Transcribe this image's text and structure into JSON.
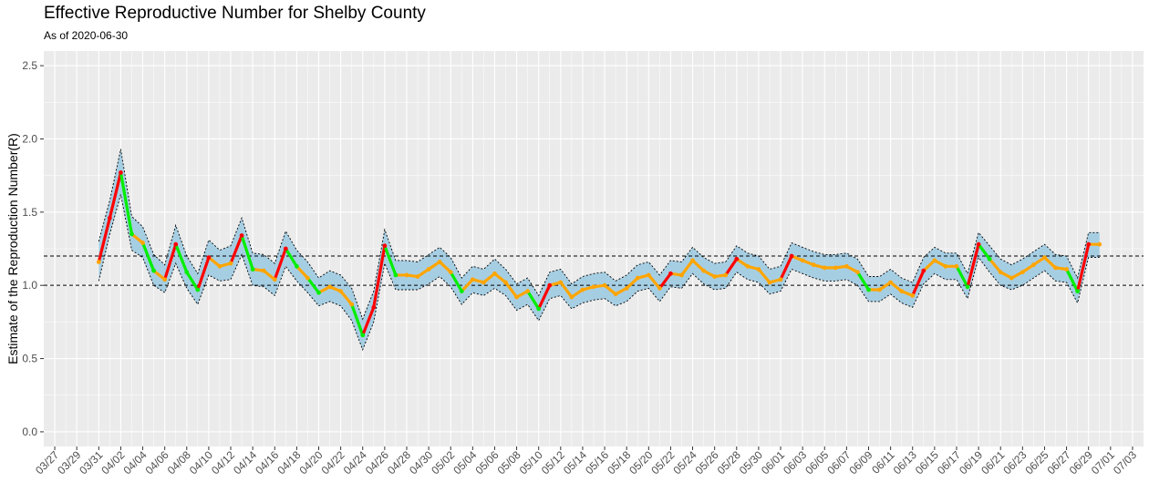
{
  "chart_data": {
    "type": "line",
    "title": "Effective Reproductive Number for Shelby County",
    "subtitle": "As of 2020-06-30",
    "xlabel": "",
    "ylabel": "Estimate of the Reproduction Number(R)",
    "ylim": [
      -0.1,
      2.6
    ],
    "yticks": [
      "0.0",
      "0.5",
      "1.0",
      "1.5",
      "2.0",
      "2.5"
    ],
    "ytick_values": [
      0,
      0.5,
      1.0,
      1.5,
      2.0,
      2.5
    ],
    "xlim": [
      "03/26",
      "07/04"
    ],
    "xtick_labels": [
      "03/27",
      "03/29",
      "03/31",
      "04/02",
      "04/04",
      "04/06",
      "04/08",
      "04/10",
      "04/12",
      "04/14",
      "04/16",
      "04/18",
      "04/20",
      "04/22",
      "04/24",
      "04/26",
      "04/28",
      "04/30",
      "05/02",
      "05/04",
      "05/06",
      "05/08",
      "05/10",
      "05/12",
      "05/14",
      "05/16",
      "05/18",
      "05/20",
      "05/22",
      "05/24",
      "05/26",
      "05/28",
      "05/30",
      "06/01",
      "06/03",
      "06/05",
      "06/07",
      "06/09",
      "06/11",
      "06/13",
      "06/15",
      "06/17",
      "06/19",
      "06/21",
      "06/23",
      "06/25",
      "06/27",
      "06/29",
      "07/01",
      "07/03"
    ],
    "reference_lines": [
      1.0,
      1.2
    ],
    "grid": true,
    "legend": "none",
    "colors": {
      "panel_bg": "#ebebeb",
      "grid": "#ffffff",
      "ribbon": "#a6cee3",
      "increasing": "#ff0000",
      "stable": "#ffa500",
      "decreasing": "#00ee00"
    },
    "series": [
      {
        "dates": [
          "03/31",
          "04/01",
          "04/02",
          "04/03",
          "04/04",
          "04/05",
          "04/06",
          "04/07",
          "04/08",
          "04/09",
          "04/10",
          "04/11",
          "04/12",
          "04/13",
          "04/14",
          "04/15",
          "04/16",
          "04/17",
          "04/18",
          "04/19",
          "04/20",
          "04/21",
          "04/22",
          "04/23",
          "04/24",
          "04/25",
          "04/26",
          "04/27",
          "04/28",
          "04/29",
          "04/30",
          "05/01",
          "05/02",
          "05/03",
          "05/04",
          "05/05",
          "05/06",
          "05/07",
          "05/08",
          "05/09",
          "05/10",
          "05/11",
          "05/12",
          "05/13",
          "05/14",
          "05/15",
          "05/16",
          "05/17",
          "05/18",
          "05/19",
          "05/20",
          "05/21",
          "05/22",
          "05/23",
          "05/24",
          "05/25",
          "05/26",
          "05/27",
          "05/28",
          "05/29",
          "05/30",
          "05/31",
          "06/01",
          "06/02",
          "06/03",
          "06/04",
          "06/05",
          "06/06",
          "06/07",
          "06/08",
          "06/09",
          "06/10",
          "06/11",
          "06/12",
          "06/13",
          "06/14",
          "06/15",
          "06/16",
          "06/17",
          "06/18",
          "06/19",
          "06/20",
          "06/21",
          "06/22",
          "06/23",
          "06/24",
          "06/25",
          "06/26",
          "06/27",
          "06/28",
          "06/29",
          "06/30"
        ],
        "r": [
          1.16,
          1.46,
          1.77,
          1.35,
          1.29,
          1.1,
          1.04,
          1.28,
          1.09,
          0.97,
          1.19,
          1.13,
          1.15,
          1.34,
          1.11,
          1.1,
          1.04,
          1.25,
          1.13,
          1.05,
          0.95,
          0.99,
          0.96,
          0.87,
          0.66,
          0.85,
          1.27,
          1.07,
          1.07,
          1.06,
          1.11,
          1.16,
          1.09,
          0.96,
          1.04,
          1.02,
          1.08,
          1.02,
          0.92,
          0.96,
          0.84,
          1.0,
          1.02,
          0.92,
          0.97,
          0.99,
          1.0,
          0.94,
          0.98,
          1.05,
          1.07,
          0.98,
          1.08,
          1.07,
          1.17,
          1.1,
          1.06,
          1.07,
          1.18,
          1.13,
          1.11,
          1.02,
          1.04,
          1.2,
          1.17,
          1.14,
          1.12,
          1.12,
          1.13,
          1.09,
          0.97,
          0.97,
          1.02,
          0.96,
          0.93,
          1.1,
          1.17,
          1.13,
          1.13,
          0.99,
          1.28,
          1.18,
          1.09,
          1.05,
          1.09,
          1.14,
          1.19,
          1.12,
          1.11,
          0.96,
          1.28,
          1.28
        ],
        "lower": [
          1.03,
          1.35,
          1.62,
          1.24,
          1.19,
          1.0,
          0.95,
          1.15,
          0.98,
          0.87,
          1.07,
          1.03,
          1.04,
          1.21,
          1.0,
          0.99,
          0.93,
          1.13,
          1.03,
          0.95,
          0.86,
          0.89,
          0.86,
          0.76,
          0.56,
          0.75,
          1.15,
          0.97,
          0.97,
          0.97,
          1.01,
          1.06,
          0.99,
          0.87,
          0.95,
          0.93,
          0.98,
          0.93,
          0.83,
          0.87,
          0.76,
          0.91,
          0.93,
          0.84,
          0.88,
          0.9,
          0.91,
          0.86,
          0.89,
          0.96,
          0.98,
          0.89,
          0.99,
          0.98,
          1.08,
          1.01,
          0.97,
          0.98,
          1.09,
          1.04,
          1.02,
          0.94,
          0.96,
          1.11,
          1.08,
          1.05,
          1.03,
          1.03,
          1.04,
          1.0,
          0.89,
          0.89,
          0.94,
          0.88,
          0.85,
          1.01,
          1.08,
          1.04,
          1.04,
          0.91,
          1.19,
          1.09,
          1.0,
          0.97,
          1.0,
          1.05,
          1.1,
          1.03,
          1.02,
          0.88,
          1.19,
          1.19
        ],
        "upper": [
          1.3,
          1.58,
          1.93,
          1.47,
          1.4,
          1.21,
          1.14,
          1.41,
          1.2,
          1.08,
          1.31,
          1.24,
          1.27,
          1.46,
          1.22,
          1.21,
          1.15,
          1.37,
          1.24,
          1.16,
          1.05,
          1.1,
          1.07,
          0.98,
          0.77,
          0.96,
          1.38,
          1.17,
          1.17,
          1.16,
          1.21,
          1.26,
          1.19,
          1.05,
          1.13,
          1.11,
          1.18,
          1.11,
          1.01,
          1.05,
          0.93,
          1.09,
          1.11,
          1.01,
          1.06,
          1.08,
          1.09,
          1.03,
          1.07,
          1.14,
          1.16,
          1.07,
          1.17,
          1.16,
          1.26,
          1.19,
          1.15,
          1.16,
          1.27,
          1.22,
          1.2,
          1.11,
          1.13,
          1.29,
          1.26,
          1.23,
          1.21,
          1.21,
          1.22,
          1.18,
          1.06,
          1.06,
          1.11,
          1.05,
          1.02,
          1.19,
          1.26,
          1.22,
          1.22,
          1.08,
          1.36,
          1.27,
          1.18,
          1.14,
          1.18,
          1.23,
          1.28,
          1.21,
          1.2,
          1.05,
          1.36,
          1.36
        ]
      }
    ]
  }
}
